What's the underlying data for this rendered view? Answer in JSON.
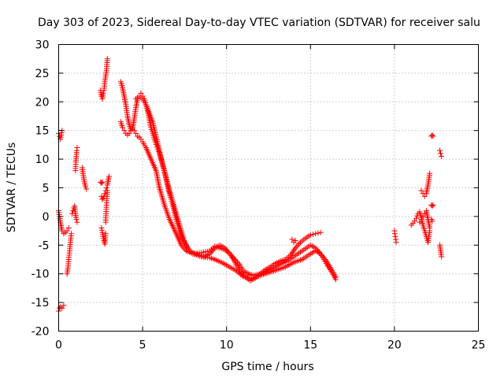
{
  "chart_data": {
    "type": "scatter",
    "title": "Day 303 of 2023, Sidereal Day-to-day VTEC variation (SDTVAR) for receiver salu",
    "xlabel": "GPS time / hours",
    "ylabel": "SDTVAR / TECUs",
    "xlim": [
      0,
      25
    ],
    "ylim": [
      -20,
      30
    ],
    "x_ticks": [
      "0",
      "5",
      "10",
      "15",
      "20",
      "25"
    ],
    "y_ticks": [
      "-20",
      "-15",
      "-10",
      "-5",
      "0",
      "5",
      "10",
      "15",
      "20",
      "25",
      "30"
    ],
    "grid": true,
    "marker": "plus",
    "color": "#ff0000",
    "series": [
      {
        "name": "seg-00",
        "x": [
          0.0,
          0.05,
          0.1,
          0.15,
          0.2
        ],
        "y": [
          14.5,
          14.0,
          13.5,
          14.2,
          15.0
        ]
      },
      {
        "name": "seg-01",
        "x": [
          0.0,
          0.05,
          0.1,
          0.2,
          0.3
        ],
        "y": [
          -16.5,
          -16.0,
          -15.8,
          -16.0,
          -15.5
        ]
      },
      {
        "name": "seg-02",
        "x": [
          0.0,
          0.1,
          0.2,
          0.3,
          0.4,
          0.5,
          0.6
        ],
        "y": [
          1.0,
          -1.0,
          -2.5,
          -3.0,
          -2.8,
          -2.5,
          -2.0
        ]
      },
      {
        "name": "seg-03",
        "x": [
          0.5,
          0.55,
          0.6,
          0.65,
          0.7,
          0.75
        ],
        "y": [
          -10.0,
          -9.0,
          -7.5,
          -6.0,
          -4.5,
          -3.0
        ]
      },
      {
        "name": "seg-04",
        "x": [
          0.8,
          0.85,
          0.9,
          0.95,
          1.0,
          1.05,
          1.1
        ],
        "y": [
          0.5,
          1.0,
          1.5,
          1.8,
          0.5,
          -0.5,
          -1.0
        ]
      },
      {
        "name": "seg-05",
        "x": [
          1.0,
          1.02,
          1.05,
          1.08,
          1.1
        ],
        "y": [
          8.0,
          9.5,
          10.5,
          11.5,
          12.0
        ]
      },
      {
        "name": "seg-06",
        "x": [
          1.4,
          1.45,
          1.5,
          1.55,
          1.6,
          1.65
        ],
        "y": [
          8.5,
          7.5,
          6.5,
          5.8,
          5.2,
          4.8
        ]
      },
      {
        "name": "seg-07",
        "x": [
          2.5,
          2.55,
          2.6,
          2.65,
          2.7,
          2.75,
          2.8,
          2.85,
          2.9
        ],
        "y": [
          22.0,
          21.0,
          20.5,
          21.5,
          22.0,
          23.5,
          24.5,
          25.5,
          27.5
        ]
      },
      {
        "name": "seg-08",
        "x": [
          2.5,
          2.55,
          2.6
        ],
        "y": [
          6.0,
          5.8,
          6.0
        ]
      },
      {
        "name": "seg-09",
        "x": [
          2.55,
          2.6,
          2.65,
          2.7,
          2.75,
          2.8,
          2.85,
          2.9,
          3.0
        ],
        "y": [
          3.5,
          3.0,
          3.2,
          3.5,
          4.0,
          4.5,
          5.0,
          5.5,
          7.0
        ]
      },
      {
        "name": "seg-10",
        "x": [
          2.55,
          2.6,
          2.65,
          2.7,
          2.75,
          2.8
        ],
        "y": [
          -2.0,
          -2.8,
          -3.5,
          -4.2,
          -4.8,
          -3.0
        ]
      },
      {
        "name": "seg-11",
        "x": [
          2.8,
          2.82,
          2.85,
          2.88,
          2.9
        ],
        "y": [
          -1.0,
          0.5,
          2.0,
          3.5,
          4.5
        ]
      },
      {
        "name": "seg-12",
        "x": [
          3.7,
          3.8,
          3.9,
          4.0,
          4.1,
          4.2,
          4.3,
          4.4,
          4.5,
          4.6,
          4.7
        ],
        "y": [
          23.5,
          22.5,
          21.0,
          19.5,
          17.5,
          16.0,
          15.0,
          15.2,
          17.0,
          19.0,
          20.5
        ]
      },
      {
        "name": "seg-13",
        "x": [
          3.7,
          3.8,
          3.9,
          4.0,
          4.1,
          4.2,
          4.3
        ],
        "y": [
          16.5,
          15.5,
          15.0,
          14.5,
          14.2,
          14.5,
          15.0
        ]
      },
      {
        "name": "seg-14",
        "x": [
          4.4,
          4.5,
          4.6,
          4.7,
          4.8,
          4.9,
          5.0,
          5.2,
          5.5,
          5.8,
          6.0,
          6.3,
          6.6,
          7.0,
          7.3,
          7.6,
          8.0,
          8.5,
          9.0,
          9.3,
          9.7,
          10.0,
          10.3,
          10.6,
          11.0,
          11.5,
          12.0,
          12.5,
          13.0,
          13.5,
          14.0,
          14.5,
          15.0,
          15.3,
          15.6,
          16.0,
          16.3,
          16.5
        ],
        "y": [
          15.5,
          15.0,
          14.5,
          14.0,
          13.8,
          13.5,
          13.0,
          12.0,
          10.0,
          8.0,
          5.0,
          2.0,
          -0.5,
          -3.0,
          -5.0,
          -6.0,
          -6.5,
          -7.0,
          -7.2,
          -7.5,
          -8.0,
          -8.5,
          -9.0,
          -9.5,
          -10.5,
          -10.8,
          -10.3,
          -9.8,
          -9.3,
          -8.8,
          -8.0,
          -7.5,
          -6.5,
          -6.0,
          -6.5,
          -8.0,
          -9.5,
          -10.5
        ]
      },
      {
        "name": "seg-15",
        "x": [
          4.6,
          4.8,
          5.0,
          5.2,
          5.4,
          5.6,
          5.8,
          6.0,
          6.2,
          6.4,
          6.6,
          6.8,
          7.0,
          7.2,
          7.4,
          7.6,
          7.8,
          8.0,
          8.5,
          9.0,
          9.3,
          9.6,
          9.9,
          10.2,
          10.5,
          10.8,
          11.0,
          11.3,
          11.6,
          12.0,
          12.4,
          12.8,
          13.2,
          13.6,
          14.0,
          14.5,
          15.0,
          15.3,
          15.6,
          15.8,
          16.0,
          16.3,
          16.5
        ],
        "y": [
          20.5,
          21.0,
          20.5,
          19.5,
          18.0,
          16.5,
          14.0,
          11.5,
          9.0,
          6.5,
          4.0,
          2.0,
          -0.5,
          -2.5,
          -4.0,
          -5.0,
          -6.0,
          -6.5,
          -6.3,
          -6.0,
          -5.2,
          -5.5,
          -5.8,
          -6.5,
          -7.5,
          -8.5,
          -9.5,
          -10.0,
          -10.3,
          -10.0,
          -9.5,
          -9.0,
          -8.3,
          -7.8,
          -7.0,
          -6.0,
          -5.0,
          -5.5,
          -6.5,
          -7.5,
          -8.5,
          -9.8,
          -11.0
        ]
      },
      {
        "name": "seg-16",
        "x": [
          4.9,
          5.0,
          5.1,
          5.2,
          5.3,
          5.4,
          5.5,
          5.7,
          6.0,
          6.3,
          6.6,
          6.9,
          7.2,
          7.5,
          7.8,
          8.1,
          8.4,
          8.7,
          9.0,
          9.3,
          9.6,
          9.9,
          10.2,
          10.5,
          10.8,
          11.1,
          11.4,
          11.7,
          12.0,
          12.3,
          12.6,
          12.9,
          13.2,
          13.5,
          13.8,
          14.1,
          14.4,
          14.7,
          15.0,
          15.3,
          15.6
        ],
        "y": [
          21.5,
          21.0,
          20.5,
          19.5,
          18.5,
          17.0,
          15.5,
          13.5,
          11.0,
          8.0,
          4.5,
          1.5,
          -1.5,
          -4.5,
          -6.0,
          -6.5,
          -6.8,
          -7.0,
          -6.5,
          -5.5,
          -5.0,
          -5.5,
          -6.5,
          -8.0,
          -9.5,
          -10.5,
          -11.2,
          -10.8,
          -10.0,
          -9.3,
          -8.8,
          -8.2,
          -7.8,
          -7.5,
          -6.8,
          -5.5,
          -4.5,
          -3.8,
          -3.2,
          -3.0,
          -2.8
        ]
      },
      {
        "name": "seg-17",
        "x": [
          13.9,
          14.0,
          14.1
        ],
        "y": [
          -4.0,
          -4.5,
          -4.2
        ]
      },
      {
        "name": "seg-18",
        "x": [
          20.0,
          20.02,
          20.05,
          20.08,
          20.1
        ],
        "y": [
          -2.5,
          -3.0,
          -3.5,
          -4.0,
          -4.5
        ]
      },
      {
        "name": "seg-19",
        "x": [
          21.0,
          21.1,
          21.2,
          21.3,
          21.4,
          21.5,
          21.6,
          21.7,
          21.8,
          21.9,
          22.0,
          22.1
        ],
        "y": [
          -1.5,
          -1.2,
          -0.8,
          -0.3,
          0.5,
          0.8,
          -0.2,
          -1.5,
          -2.5,
          -3.5,
          -4.5,
          -2.5
        ]
      },
      {
        "name": "seg-20",
        "x": [
          21.5,
          21.6,
          21.7,
          21.8,
          21.9,
          22.0,
          22.1
        ],
        "y": [
          -1.0,
          -0.5,
          0.0,
          0.5,
          1.0,
          -0.5,
          -2.0
        ]
      },
      {
        "name": "seg-21",
        "x": [
          21.6,
          21.7,
          21.8,
          21.9,
          22.0,
          22.05,
          22.1
        ],
        "y": [
          4.5,
          4.0,
          3.5,
          4.0,
          5.5,
          6.5,
          7.5
        ]
      },
      {
        "name": "seg-22",
        "x": [
          22.2,
          22.25,
          22.3
        ],
        "y": [
          14.0,
          14.2,
          14.0
        ]
      },
      {
        "name": "seg-23",
        "x": [
          22.2,
          22.25,
          22.3
        ],
        "y": [
          2.0,
          1.8,
          2.0
        ]
      },
      {
        "name": "seg-24",
        "x": [
          22.2,
          22.25
        ],
        "y": [
          -0.5,
          -0.8
        ]
      },
      {
        "name": "seg-25",
        "x": [
          22.7,
          22.75,
          22.8
        ],
        "y": [
          11.5,
          11.0,
          10.5
        ]
      },
      {
        "name": "seg-26",
        "x": [
          22.7,
          22.75,
          22.8
        ],
        "y": [
          -5.0,
          -6.0,
          -7.0
        ]
      }
    ]
  }
}
